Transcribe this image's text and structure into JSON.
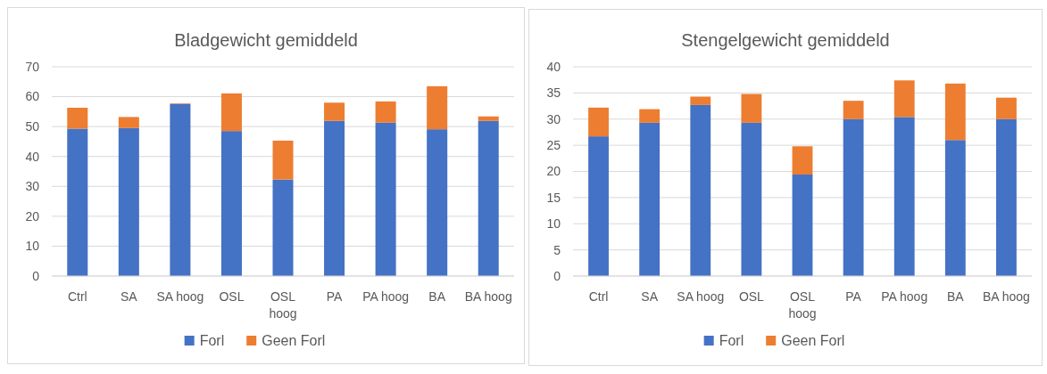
{
  "chart_data": [
    {
      "type": "bar",
      "title": "Bladgewicht gemiddeld",
      "stacked": true,
      "categories": [
        "Ctrl",
        "SA",
        "SA hoog",
        "OSL",
        "OSL hoog",
        "PA",
        "PA hoog",
        "BA",
        "BA hoog"
      ],
      "series": [
        {
          "name": "Forl",
          "color": "#4472c4",
          "values": [
            49.3,
            49.5,
            57.6,
            48.5,
            32.3,
            51.9,
            51.3,
            49.1,
            51.9
          ]
        },
        {
          "name": "Geen Forl",
          "color": "#ed7d31",
          "values": [
            7.0,
            3.7,
            0.2,
            12.6,
            13.0,
            6.1,
            7.1,
            14.4,
            1.5
          ]
        }
      ],
      "ylim": [
        0,
        70
      ],
      "yticks": [
        0,
        10,
        20,
        30,
        40,
        50,
        60,
        70
      ],
      "grid": "y",
      "legend": "bottom"
    },
    {
      "type": "bar",
      "title": "Stengelgewicht gemiddeld",
      "stacked": true,
      "categories": [
        "Ctrl",
        "SA",
        "SA hoog",
        "OSL",
        "OSL hoog",
        "PA",
        "PA hoog",
        "BA",
        "BA hoog"
      ],
      "series": [
        {
          "name": "Forl",
          "color": "#4472c4",
          "values": [
            26.7,
            29.3,
            32.7,
            29.3,
            19.4,
            30.0,
            30.4,
            26.0,
            30.0
          ]
        },
        {
          "name": "Geen Forl",
          "color": "#ed7d31",
          "values": [
            5.5,
            2.6,
            1.6,
            5.5,
            5.4,
            3.5,
            7.0,
            10.8,
            4.1
          ]
        }
      ],
      "ylim": [
        0,
        40
      ],
      "yticks": [
        0,
        5,
        10,
        15,
        20,
        25,
        30,
        35,
        40
      ],
      "grid": "y",
      "legend": "bottom"
    }
  ]
}
